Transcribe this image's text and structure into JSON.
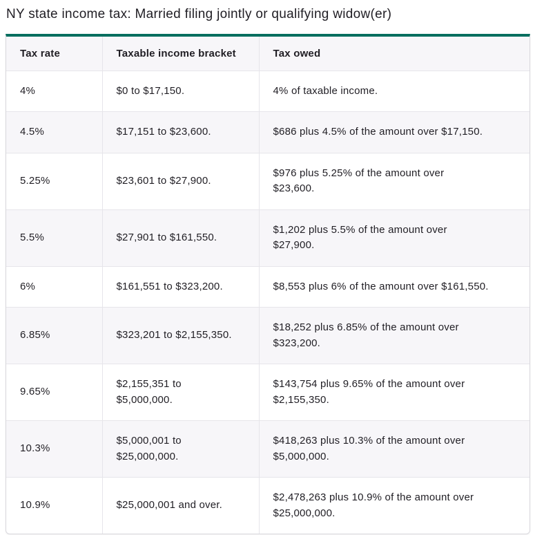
{
  "page": {
    "title": "NY state income tax: Married filing jointly or qualifying widow(er)"
  },
  "table": {
    "accent_color": "#066e5f",
    "alt_row_color": "#f7f6f9",
    "columns": [
      "Tax rate",
      "Taxable income bracket",
      "Tax owed"
    ],
    "rows": [
      {
        "rate": "4%",
        "bracket": "$0 to $17,150.",
        "owed": "4% of taxable income."
      },
      {
        "rate": "4.5%",
        "bracket": "$17,151 to $23,600.",
        "owed": "$686 plus 4.5% of the amount over $17,150."
      },
      {
        "rate": "5.25%",
        "bracket": "$23,601 to $27,900.",
        "owed": "$976 plus 5.25% of the amount over\n$23,600."
      },
      {
        "rate": "5.5%",
        "bracket": "$27,901 to $161,550.",
        "owed": "$1,202 plus 5.5% of the amount over\n$27,900."
      },
      {
        "rate": "6%",
        "bracket": "$161,551 to $323,200.",
        "owed": "$8,553 plus 6% of the amount over $161,550."
      },
      {
        "rate": "6.85%",
        "bracket": "$323,201 to $2,155,350.",
        "owed": "$18,252 plus 6.85% of the amount over\n$323,200."
      },
      {
        "rate": "9.65%",
        "bracket": "$2,155,351 to\n$5,000,000.",
        "owed": "$143,754 plus 9.65% of the amount over\n$2,155,350."
      },
      {
        "rate": "10.3%",
        "bracket": "$5,000,001 to\n$25,000,000.",
        "owed": "$418,263 plus 10.3% of the amount over\n$5,000,000."
      },
      {
        "rate": "10.9%",
        "bracket": "$25,000,001 and over.",
        "owed": "$2,478,263 plus 10.9% of the amount over\n$25,000,000."
      }
    ]
  }
}
